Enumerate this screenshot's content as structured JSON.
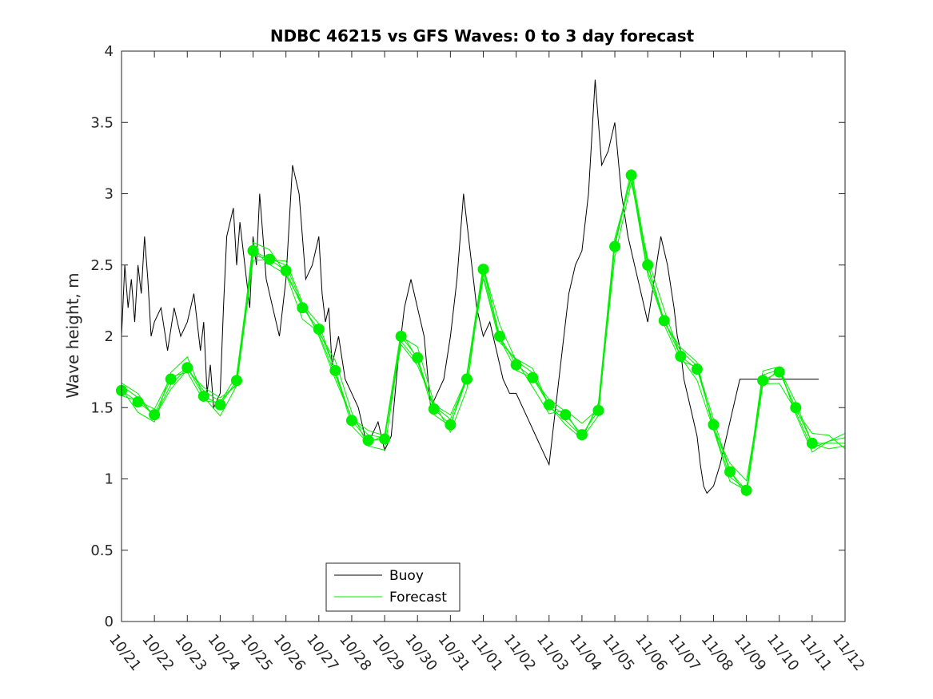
{
  "colors": {
    "buoy": "#000000",
    "forecast": "#00ee00",
    "axis": "#262626"
  },
  "chart_data": {
    "type": "line",
    "title": "NDBC 46215 vs GFS Waves: 0 to 3 day forecast",
    "xlabel": "",
    "ylabel": "Wave height, m",
    "ylim": [
      0,
      4
    ],
    "yticks": [
      "0",
      "0.5",
      "1",
      "1.5",
      "2",
      "2.5",
      "3",
      "3.5",
      "4"
    ],
    "xlim_days": [
      0,
      22
    ],
    "xticks": [
      "10/21",
      "10/22",
      "10/23",
      "10/24",
      "10/25",
      "10/26",
      "10/27",
      "10/28",
      "10/29",
      "10/30",
      "10/31",
      "11/01",
      "11/02",
      "11/03",
      "11/04",
      "11/05",
      "11/06",
      "11/07",
      "11/08",
      "11/09",
      "11/10",
      "11/11",
      "11/12"
    ],
    "legend": {
      "placement": "bottom-center",
      "entries": [
        "Buoy",
        "Forecast"
      ]
    },
    "series": [
      {
        "name": "Buoy",
        "x_days": [
          0,
          0.1,
          0.2,
          0.3,
          0.4,
          0.5,
          0.6,
          0.7,
          0.8,
          0.9,
          1.0,
          1.2,
          1.4,
          1.6,
          1.8,
          2.0,
          2.2,
          2.4,
          2.5,
          2.6,
          2.7,
          2.8,
          3.0,
          3.1,
          3.2,
          3.4,
          3.5,
          3.6,
          3.8,
          3.9,
          4.0,
          4.1,
          4.2,
          4.4,
          4.6,
          4.8,
          5.0,
          5.2,
          5.4,
          5.6,
          5.8,
          6.0,
          6.1,
          6.2,
          6.3,
          6.4,
          6.6,
          6.8,
          7.0,
          7.2,
          7.4,
          7.6,
          7.8,
          8.0,
          8.2,
          8.4,
          8.6,
          8.8,
          9.0,
          9.2,
          9.4,
          9.6,
          9.8,
          10.0,
          10.2,
          10.4,
          10.6,
          10.8,
          11.0,
          11.2,
          11.4,
          11.6,
          11.8,
          12.0,
          12.2,
          12.4,
          12.6,
          12.8,
          13.0,
          13.2,
          13.4,
          13.6,
          13.8,
          14.0,
          14.2,
          14.4,
          14.6,
          14.8,
          15.0,
          15.2,
          15.4,
          15.6,
          15.8,
          16.0,
          16.2,
          16.4,
          16.6,
          16.8,
          16.9,
          17.0,
          17.1,
          17.3,
          17.5,
          17.6,
          17.7,
          17.8,
          18.0,
          18.2,
          18.4,
          18.6,
          18.8,
          19.0,
          19.2,
          19.4,
          19.6,
          19.8,
          20.0,
          20.2,
          20.4,
          20.6,
          20.8,
          21.0,
          21.2
        ],
        "values": [
          2.0,
          2.5,
          2.2,
          2.4,
          2.1,
          2.5,
          2.3,
          2.7,
          2.4,
          2.0,
          2.1,
          2.2,
          1.9,
          2.2,
          2.0,
          2.1,
          2.3,
          1.9,
          2.1,
          1.6,
          1.8,
          1.5,
          1.6,
          2.2,
          2.7,
          2.9,
          2.5,
          2.8,
          2.4,
          2.2,
          2.7,
          2.5,
          3.0,
          2.4,
          2.2,
          2.0,
          2.4,
          3.2,
          3.0,
          2.4,
          2.5,
          2.7,
          2.3,
          2.1,
          2.2,
          1.8,
          2.0,
          1.7,
          1.6,
          1.5,
          1.3,
          1.3,
          1.4,
          1.2,
          1.3,
          1.8,
          2.2,
          2.4,
          2.2,
          2.0,
          1.5,
          1.6,
          1.7,
          2.0,
          2.4,
          3.0,
          2.6,
          2.2,
          2.0,
          2.1,
          1.9,
          1.7,
          1.6,
          1.6,
          1.5,
          1.4,
          1.3,
          1.2,
          1.1,
          1.5,
          1.9,
          2.3,
          2.5,
          2.6,
          3.0,
          3.8,
          3.2,
          3.3,
          3.5,
          3.0,
          2.7,
          2.5,
          2.3,
          2.1,
          2.4,
          2.7,
          2.5,
          2.2,
          2.0,
          1.9,
          1.7,
          1.5,
          1.3,
          1.1,
          0.95,
          0.9,
          0.95,
          1.1,
          1.3,
          1.5,
          1.7,
          1.7,
          1.7,
          1.7,
          1.7,
          1.7,
          1.7,
          1.7,
          1.7,
          1.7,
          1.7,
          1.7,
          1.7
        ]
      },
      {
        "name": "Forecast",
        "x_days": [
          0,
          0.5,
          1.0,
          1.5,
          2.0,
          2.5,
          3.0,
          3.5,
          4.0,
          4.5,
          5.0,
          5.5,
          6.0,
          6.5,
          7.0,
          7.5,
          8.0,
          8.5,
          9.0,
          9.5,
          10.0,
          10.5,
          11.0,
          11.5,
          12.0,
          12.5,
          13.0,
          13.5,
          14.0,
          14.5,
          15.0,
          15.5,
          16.0,
          16.5,
          17.0,
          17.5,
          18.0,
          18.5,
          19.0,
          19.5,
          20.0,
          20.5,
          21.0,
          21.5,
          22.0
        ],
        "values": [
          1.62,
          1.54,
          1.45,
          1.7,
          1.78,
          1.58,
          1.52,
          1.69,
          2.6,
          2.54,
          2.46,
          2.2,
          2.05,
          1.76,
          1.41,
          1.27,
          1.28,
          2.0,
          1.85,
          1.49,
          1.38,
          1.7,
          2.47,
          2.0,
          1.8,
          1.71,
          1.52,
          1.45,
          1.31,
          1.48,
          2.63,
          3.13,
          2.5,
          2.11,
          1.86,
          1.77,
          1.38,
          1.05,
          0.92,
          1.69,
          1.75,
          1.5,
          1.25,
          1.25,
          1.25
        ]
      }
    ],
    "markers_series": "Forecast"
  }
}
